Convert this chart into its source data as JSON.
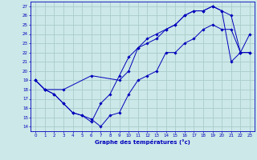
{
  "xlabel": "Graphe des températures (°c)",
  "ylabel_ticks": [
    14,
    15,
    16,
    17,
    18,
    19,
    20,
    21,
    22,
    23,
    24,
    25,
    26,
    27
  ],
  "xlabel_ticks": [
    0,
    1,
    2,
    3,
    4,
    5,
    6,
    7,
    8,
    9,
    10,
    11,
    12,
    13,
    14,
    15,
    16,
    17,
    18,
    19,
    20,
    21,
    22,
    23
  ],
  "xlim": [
    -0.5,
    23.5
  ],
  "ylim": [
    13.5,
    27.5
  ],
  "bg_color": "#cce8e8",
  "line_color": "#0000bb",
  "grid_color": "#aacccc",
  "line1_x": [
    0,
    1,
    2,
    3,
    4,
    5,
    6,
    7,
    8,
    9,
    10,
    11,
    12,
    13,
    14,
    15,
    16,
    17,
    18,
    19,
    20,
    21,
    22,
    23
  ],
  "line1_y": [
    19,
    18,
    17.5,
    16.5,
    15.5,
    15.2,
    14.8,
    14.0,
    15.2,
    15.5,
    17.5,
    19.0,
    19.5,
    20.0,
    22.0,
    22.0,
    23.0,
    23.5,
    24.5,
    25.0,
    24.5,
    24.5,
    22.0,
    22.0
  ],
  "line2_x": [
    0,
    1,
    2,
    3,
    4,
    5,
    6,
    7,
    8,
    9,
    10,
    11,
    12,
    13,
    14,
    15,
    16,
    17,
    18,
    19,
    20,
    21,
    22,
    23
  ],
  "line2_y": [
    19,
    18,
    17.5,
    16.5,
    15.5,
    15.2,
    14.5,
    16.5,
    17.5,
    19.5,
    21.5,
    22.5,
    23.5,
    24.0,
    24.5,
    25.0,
    26.0,
    26.5,
    26.5,
    27.0,
    26.5,
    26.0,
    22.0,
    24.0
  ],
  "line3_x": [
    0,
    1,
    3,
    6,
    9,
    10,
    11,
    12,
    13,
    14,
    15,
    16,
    17,
    18,
    19,
    20,
    21,
    22,
    23
  ],
  "line3_y": [
    19,
    18,
    18.0,
    19.5,
    19.0,
    20.0,
    22.5,
    23.0,
    23.5,
    24.5,
    25.0,
    26.0,
    26.5,
    26.5,
    27.0,
    26.5,
    21.0,
    22.0,
    22.0
  ]
}
